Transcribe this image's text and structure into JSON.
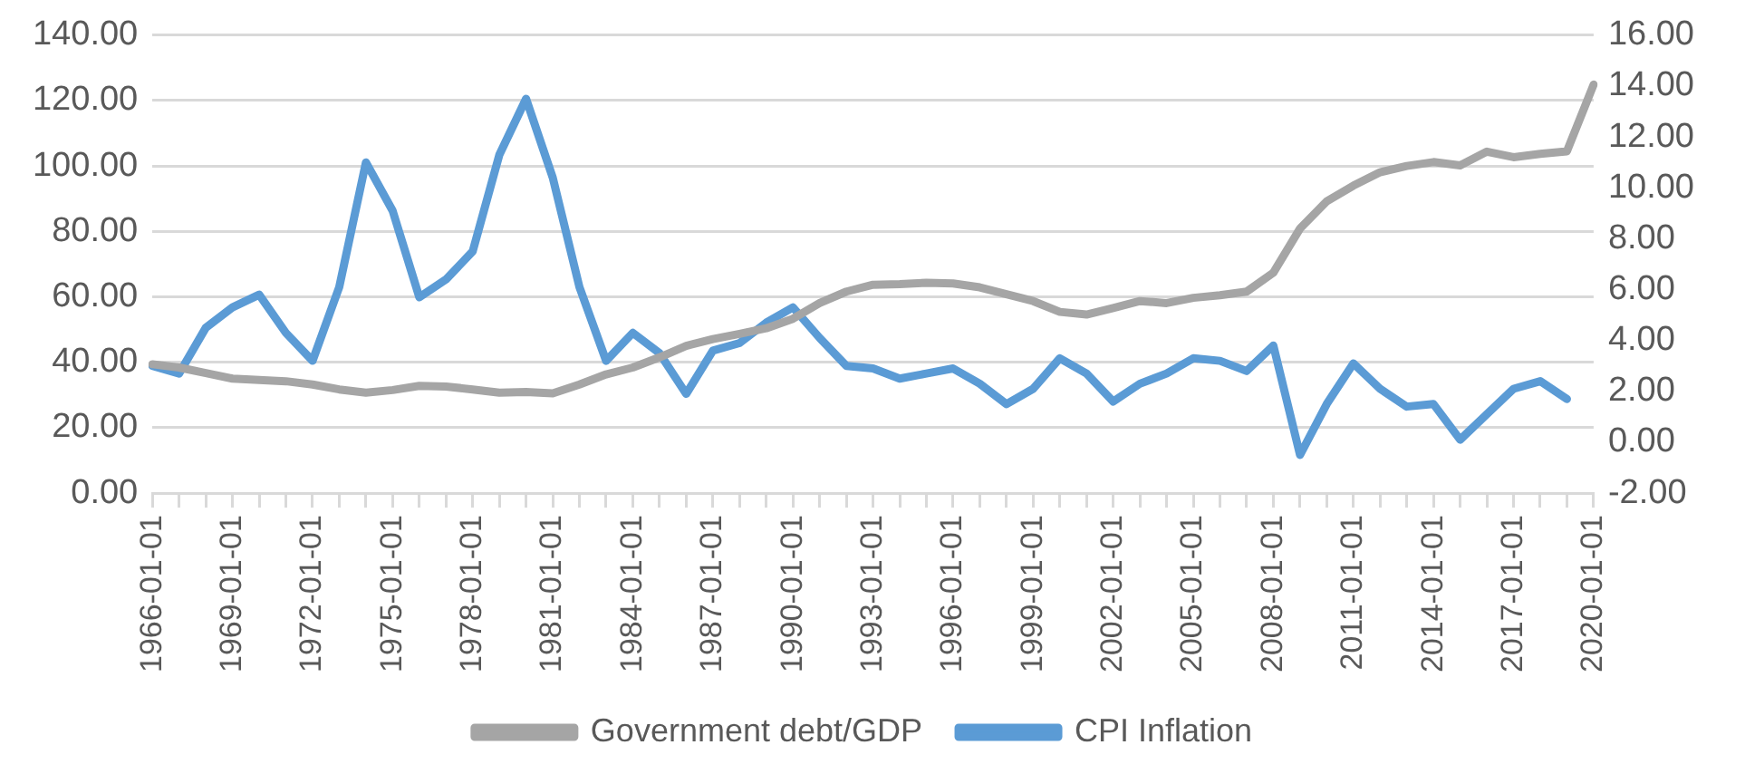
{
  "chart_data": {
    "type": "line",
    "categories": [
      "1966-01-01",
      null,
      null,
      "1969-01-01",
      null,
      null,
      "1972-01-01",
      null,
      null,
      "1975-01-01",
      null,
      null,
      "1978-01-01",
      null,
      null,
      "1981-01-01",
      null,
      null,
      "1984-01-01",
      null,
      null,
      "1987-01-01",
      null,
      null,
      "1990-01-01",
      null,
      null,
      "1993-01-01",
      null,
      null,
      "1996-01-01",
      null,
      null,
      "1999-01-01",
      null,
      null,
      "2002-01-01",
      null,
      null,
      "2005-01-01",
      null,
      null,
      "2008-01-01",
      null,
      null,
      "2011-01-01",
      null,
      null,
      "2014-01-01",
      null,
      null,
      "2017-01-01",
      null,
      null,
      "2020-01-01"
    ],
    "series": [
      {
        "name": "Government debt/GDP",
        "color": "#a5a5a5",
        "axis": "y",
        "values": [
          39.4,
          38.4,
          36.7,
          35.0,
          34.6,
          34.2,
          33.2,
          31.7,
          30.7,
          31.5,
          32.8,
          32.6,
          31.7,
          30.7,
          30.9,
          30.5,
          33.2,
          36.3,
          38.4,
          41.5,
          45.0,
          47.1,
          48.7,
          50.4,
          53.3,
          58.1,
          61.6,
          63.7,
          63.9,
          64.3,
          64.1,
          62.9,
          60.8,
          58.7,
          55.4,
          54.6,
          56.6,
          58.7,
          58.1,
          59.7,
          60.5,
          61.6,
          67.4,
          80.9,
          89.2,
          94.0,
          98.1,
          100.0,
          101.2,
          100.2,
          104.4,
          102.7,
          103.7,
          104.5,
          124.9
        ]
      },
      {
        "name": "CPI Inflation",
        "color": "#5b9bd5",
        "axis": "y2",
        "values": [
          3.0,
          2.7,
          4.5,
          5.3,
          5.8,
          4.3,
          3.2,
          6.1,
          11.0,
          9.1,
          5.7,
          6.4,
          7.5,
          11.3,
          13.5,
          10.4,
          6.1,
          3.2,
          4.3,
          3.5,
          1.9,
          3.6,
          3.9,
          4.7,
          5.3,
          4.1,
          3.0,
          2.9,
          2.5,
          2.7,
          2.9,
          2.3,
          1.5,
          2.1,
          3.3,
          2.7,
          1.6,
          2.3,
          2.7,
          3.3,
          3.2,
          2.8,
          3.8,
          -0.5,
          1.5,
          3.1,
          2.1,
          1.4,
          1.5,
          0.1,
          1.1,
          2.1,
          2.4,
          1.7,
          null
        ]
      }
    ],
    "ylim": [
      0,
      140
    ],
    "yticks": [
      {
        "value": 0,
        "label": "0.00"
      },
      {
        "value": 20,
        "label": "20.00"
      },
      {
        "value": 40,
        "label": "40.00"
      },
      {
        "value": 60,
        "label": "60.00"
      },
      {
        "value": 80,
        "label": "80.00"
      },
      {
        "value": 100,
        "label": "100.00"
      },
      {
        "value": 120,
        "label": "120.00"
      },
      {
        "value": 140,
        "label": "140.00"
      }
    ],
    "y2lim": [
      -2,
      16
    ],
    "y2ticks": [
      {
        "value": -2,
        "label": "-2.00"
      },
      {
        "value": 0,
        "label": "0.00"
      },
      {
        "value": 2,
        "label": "2.00"
      },
      {
        "value": 4,
        "label": "4.00"
      },
      {
        "value": 6,
        "label": "6.00"
      },
      {
        "value": 8,
        "label": "8.00"
      },
      {
        "value": 10,
        "label": "10.00"
      },
      {
        "value": 12,
        "label": "12.00"
      },
      {
        "value": 14,
        "label": "14.00"
      },
      {
        "value": 16,
        "label": "16.00"
      }
    ],
    "grid": "y",
    "legend": "bottom",
    "marker": "none",
    "line_style": "solid"
  }
}
